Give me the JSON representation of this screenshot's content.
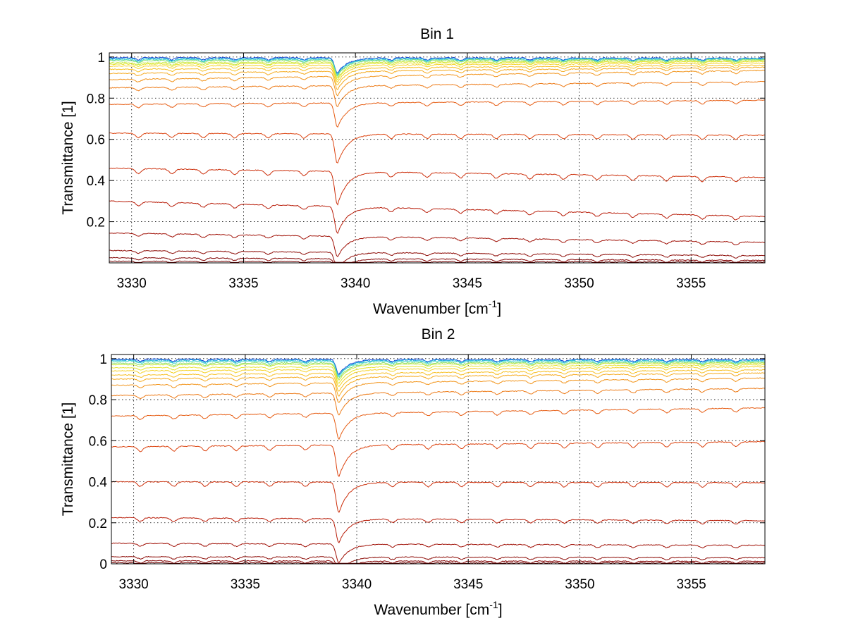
{
  "chart_data": [
    {
      "type": "line",
      "title": "Bin 1",
      "xlabel": "Wavenumber [cm",
      "xlabel_sup": "-1",
      "xlabel_end": "]",
      "ylabel": "Transmittance [1]",
      "xlim": [
        3329,
        3358.3
      ],
      "ylim": [
        0,
        1.02
      ],
      "xticks": [
        3330,
        3335,
        3340,
        3345,
        3350,
        3355
      ],
      "xtick_labels": [
        "3330",
        "3335",
        "3340",
        "3345",
        "3350",
        "3355"
      ],
      "yticks": [
        0.2,
        0.4,
        0.6,
        0.8,
        1
      ],
      "ytick_labels": [
        "0.2",
        "0.4",
        "0.6",
        "0.8",
        "1"
      ],
      "grid": true,
      "colormap": "jet",
      "absorption_lines_cm-1": [
        3330.3,
        3331.8,
        3333.2,
        3334.6,
        3336.1,
        3337.7,
        3339.2,
        3341.6,
        3343.2,
        3344.7,
        3346.3,
        3347.8,
        3349.3,
        3350.8,
        3352.4,
        3353.9,
        3355.5,
        3357.0
      ],
      "series": [
        {
          "baseline": [
            1.0,
            0.997
          ],
          "color": "#0a3fd0"
        },
        {
          "baseline": [
            0.995,
            0.995
          ],
          "color": "#1aa8e0"
        },
        {
          "baseline": [
            0.99,
            0.992
          ],
          "color": "#44d6c8"
        },
        {
          "baseline": [
            0.985,
            0.99
          ],
          "color": "#8fe070"
        },
        {
          "baseline": [
            0.975,
            0.985
          ],
          "color": "#c8e840"
        },
        {
          "baseline": [
            0.965,
            0.978
          ],
          "color": "#e8e430"
        },
        {
          "baseline": [
            0.955,
            0.97
          ],
          "color": "#f5d228"
        },
        {
          "baseline": [
            0.94,
            0.96
          ],
          "color": "#f7bf22"
        },
        {
          "baseline": [
            0.92,
            0.95
          ],
          "color": "#f5aa1e"
        },
        {
          "baseline": [
            0.89,
            0.935
          ],
          "color": "#f2941a"
        },
        {
          "baseline": [
            0.85,
            0.88
          ],
          "color": "#ed7a16"
        },
        {
          "baseline": [
            0.77,
            0.79
          ],
          "color": "#e65c12"
        },
        {
          "baseline": [
            0.63,
            0.62
          ],
          "color": "#dc420e"
        },
        {
          "baseline": [
            0.46,
            0.415
          ],
          "color": "#cc2e0a"
        },
        {
          "baseline": [
            0.3,
            0.225
          ],
          "color": "#b81c08"
        },
        {
          "baseline": [
            0.145,
            0.1
          ],
          "color": "#a01006"
        },
        {
          "baseline": [
            0.06,
            0.035
          ],
          "color": "#8c0a05"
        },
        {
          "baseline": [
            0.025,
            0.012
          ],
          "color": "#800000"
        },
        {
          "baseline": [
            0.008,
            0.004
          ],
          "color": "#700000"
        }
      ]
    },
    {
      "type": "line",
      "title": "Bin 2",
      "xlabel": "Wavenumber [cm",
      "xlabel_sup": "-1",
      "xlabel_end": "]",
      "ylabel": "Transmittance [1]",
      "xlim": [
        3329,
        3358.3
      ],
      "ylim": [
        0,
        1.02
      ],
      "xticks": [
        3330,
        3335,
        3340,
        3345,
        3350,
        3355
      ],
      "xtick_labels": [
        "3330",
        "3335",
        "3340",
        "3345",
        "3350",
        "3355"
      ],
      "yticks": [
        0,
        0.2,
        0.4,
        0.6,
        0.8,
        1
      ],
      "ytick_labels": [
        "0",
        "0.2",
        "0.4",
        "0.6",
        "0.8",
        "1"
      ],
      "grid": true,
      "colormap": "jet",
      "absorption_lines_cm-1": [
        3330.3,
        3331.8,
        3333.2,
        3334.6,
        3336.1,
        3337.7,
        3339.2,
        3341.6,
        3343.2,
        3344.7,
        3346.3,
        3347.8,
        3349.3,
        3350.8,
        3352.4,
        3353.9,
        3355.5,
        3357.0
      ],
      "series": [
        {
          "baseline": [
            1.0,
            0.998
          ],
          "color": "#0a3fd0"
        },
        {
          "baseline": [
            0.995,
            0.995
          ],
          "color": "#1aa8e0"
        },
        {
          "baseline": [
            0.99,
            0.99
          ],
          "color": "#44d6c8"
        },
        {
          "baseline": [
            0.98,
            0.985
          ],
          "color": "#8fe070"
        },
        {
          "baseline": [
            0.97,
            0.978
          ],
          "color": "#c8e840"
        },
        {
          "baseline": [
            0.955,
            0.97
          ],
          "color": "#e8e430"
        },
        {
          "baseline": [
            0.94,
            0.96
          ],
          "color": "#f5d228"
        },
        {
          "baseline": [
            0.92,
            0.945
          ],
          "color": "#f7bf22"
        },
        {
          "baseline": [
            0.9,
            0.93
          ],
          "color": "#f5aa1e"
        },
        {
          "baseline": [
            0.87,
            0.905
          ],
          "color": "#f2941a"
        },
        {
          "baseline": [
            0.82,
            0.855
          ],
          "color": "#ed7a16"
        },
        {
          "baseline": [
            0.72,
            0.76
          ],
          "color": "#e65c12"
        },
        {
          "baseline": [
            0.57,
            0.595
          ],
          "color": "#dc420e"
        },
        {
          "baseline": [
            0.4,
            0.395
          ],
          "color": "#cc2e0a"
        },
        {
          "baseline": [
            0.225,
            0.21
          ],
          "color": "#b81c08"
        },
        {
          "baseline": [
            0.1,
            0.09
          ],
          "color": "#a01006"
        },
        {
          "baseline": [
            0.035,
            0.03
          ],
          "color": "#8c0a05"
        },
        {
          "baseline": [
            0.015,
            0.012
          ],
          "color": "#800000"
        },
        {
          "baseline": [
            0.005,
            0.004
          ],
          "color": "#700000"
        }
      ]
    }
  ]
}
